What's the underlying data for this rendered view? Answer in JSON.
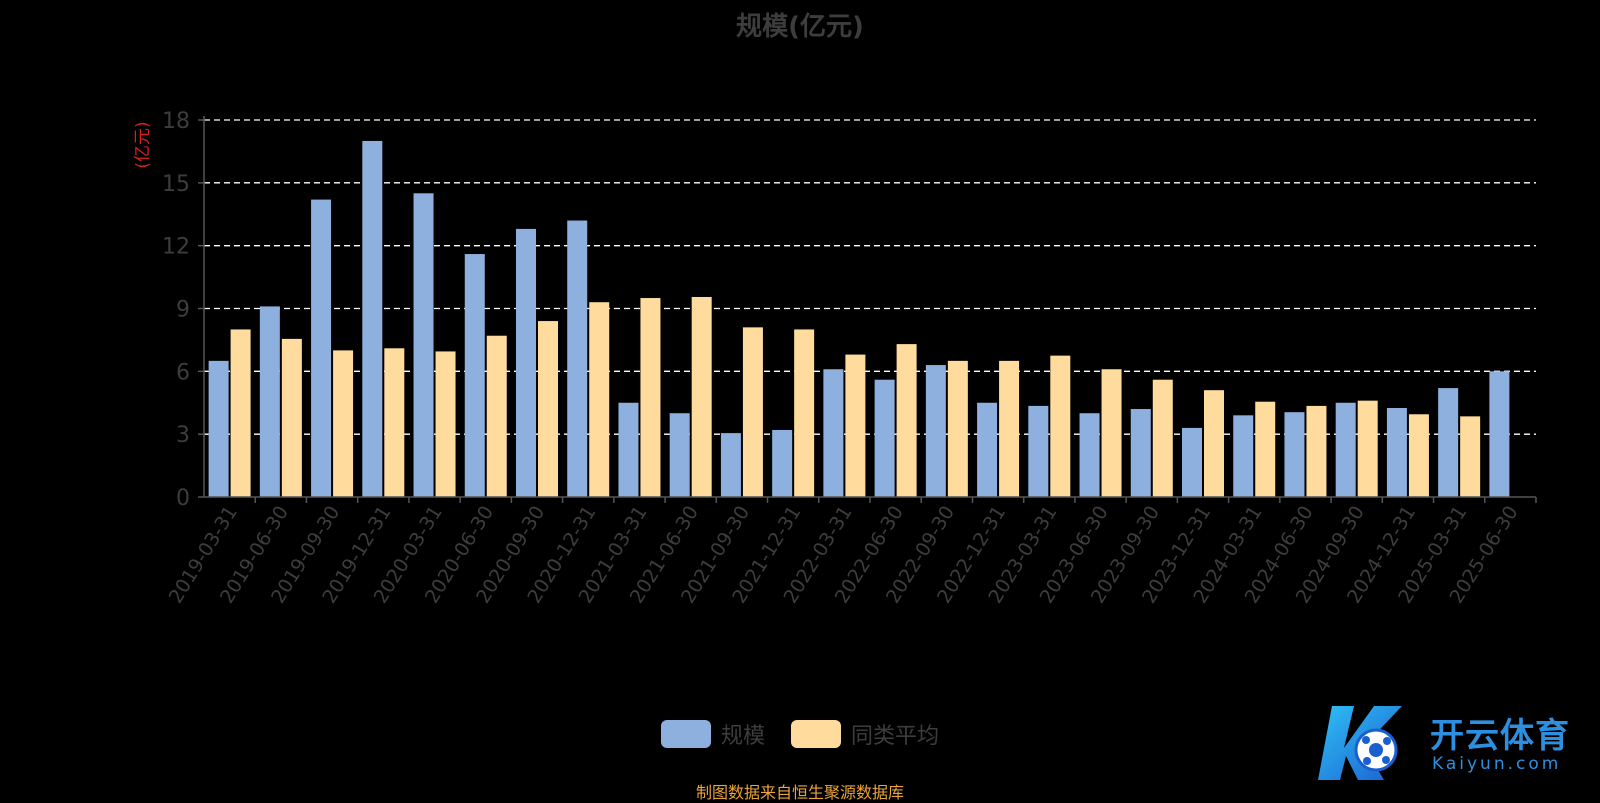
{
  "chart_data": {
    "type": "bar",
    "title": "规模(亿元)",
    "ylabel": "(亿元)",
    "ylim": [
      0,
      18
    ],
    "yticks": [
      0,
      3,
      6,
      9,
      12,
      15,
      18
    ],
    "grid": true,
    "legend_position": "bottom",
    "categories": [
      "2019-03-31",
      "2019-06-30",
      "2019-09-30",
      "2019-12-31",
      "2020-03-31",
      "2020-06-30",
      "2020-09-30",
      "2020-12-31",
      "2021-03-31",
      "2021-06-30",
      "2021-09-30",
      "2021-12-31",
      "2022-03-31",
      "2022-06-30",
      "2022-09-30",
      "2022-12-31",
      "2023-03-31",
      "2023-06-30",
      "2023-09-30",
      "2023-12-31",
      "2024-03-31",
      "2024-06-30",
      "2024-09-30",
      "2024-12-31",
      "2025-03-31",
      "2025-06-30"
    ],
    "series": [
      {
        "name": "规模",
        "color": "#8eb0de",
        "values": [
          6.5,
          9.1,
          14.2,
          17.0,
          14.5,
          11.6,
          12.8,
          13.2,
          4.5,
          4.0,
          3.05,
          3.2,
          6.1,
          5.6,
          6.3,
          4.5,
          4.35,
          4.0,
          4.2,
          3.3,
          3.9,
          4.05,
          4.5,
          4.25,
          5.2,
          6.0
        ]
      },
      {
        "name": "同类平均",
        "color": "#ffdb9e",
        "values": [
          8.0,
          7.55,
          7.0,
          7.1,
          6.95,
          7.7,
          8.4,
          9.3,
          9.5,
          9.55,
          8.1,
          8.0,
          6.8,
          7.3,
          6.5,
          6.5,
          6.75,
          6.1,
          5.6,
          5.1,
          4.55,
          4.35,
          4.6,
          3.95,
          3.85,
          null
        ]
      }
    ]
  },
  "source_note": "制图数据来自恒生聚源数据库",
  "watermark": {
    "text": "开云体育",
    "sub": "Kaiyun.com",
    "icon": "k-logo-icon",
    "color": "#2c8fe0"
  },
  "colors": {
    "axis": "#555555",
    "tick_label": "#3d3d3d",
    "grid": "#ffffff",
    "ylabel": "#d9201e"
  }
}
